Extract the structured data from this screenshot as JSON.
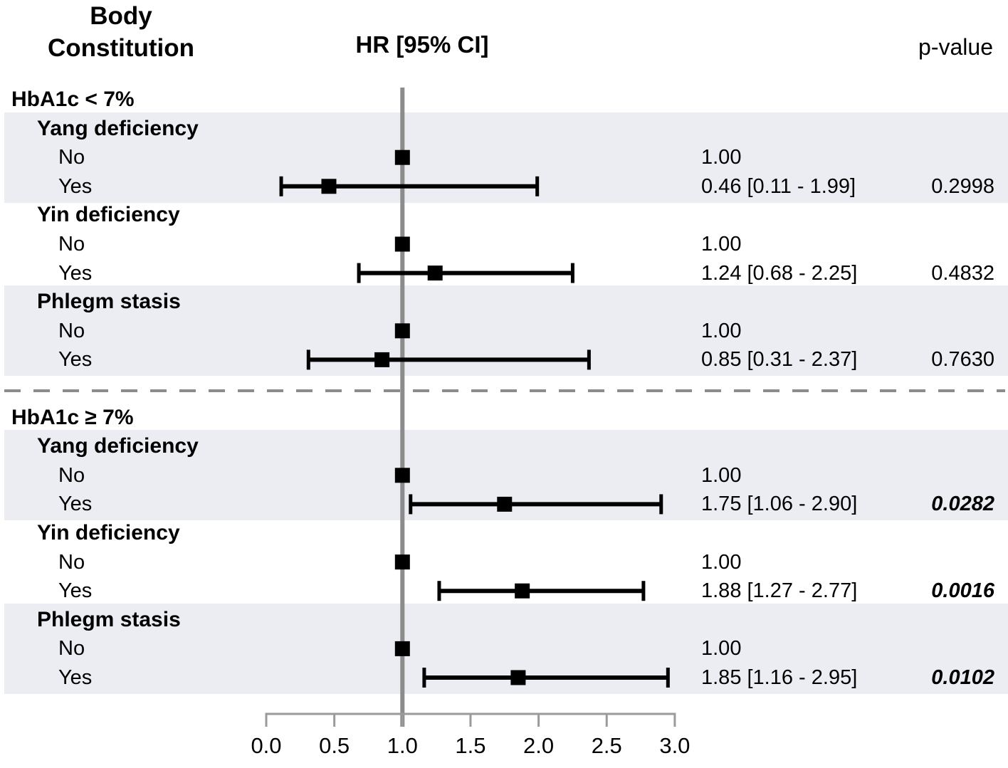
{
  "header": {
    "col1_line1": "Body",
    "col1_line2": "Constitution",
    "col2": "HR [95% CI]",
    "col3": "p-value"
  },
  "chart_data": {
    "type": "scatter",
    "subtype": "forest-plot",
    "title": "Body Constitution HR [95% CI] forest plot by HbA1c subgroup",
    "xlabel": "HR",
    "xlim": [
      0.0,
      3.0
    ],
    "x_ticks": [
      "0.0",
      "0.5",
      "1.0",
      "1.5",
      "2.0",
      "2.5",
      "3.0"
    ],
    "x_tick_values": [
      0.0,
      0.5,
      1.0,
      1.5,
      2.0,
      2.5,
      3.0
    ],
    "reference_line": 1.0,
    "grid": false,
    "legend": "none",
    "colors": {
      "stripe": "#ECEDF3",
      "marker": "#000000",
      "axis": "#9A9A9A",
      "reference_line": "#8C8C8C",
      "separator": "#8C8C8C",
      "text": "#000000"
    },
    "sections": [
      {
        "label": "HbA1c < 7%",
        "groups": [
          {
            "label": "Yang deficiency",
            "striped": true,
            "rows": [
              {
                "label": "No",
                "hr": 1.0,
                "text": "1.00",
                "p": "",
                "significant": false
              },
              {
                "label": "Yes",
                "hr": 0.46,
                "lo": 0.11,
                "hi": 1.99,
                "text": "0.46 [0.11 - 1.99]",
                "p": "0.2998",
                "significant": false
              }
            ]
          },
          {
            "label": "Yin deficiency",
            "striped": false,
            "rows": [
              {
                "label": "No",
                "hr": 1.0,
                "text": "1.00",
                "p": "",
                "significant": false
              },
              {
                "label": "Yes",
                "hr": 1.24,
                "lo": 0.68,
                "hi": 2.25,
                "text": "1.24 [0.68 - 2.25]",
                "p": "0.4832",
                "significant": false
              }
            ]
          },
          {
            "label": "Phlegm stasis",
            "striped": true,
            "rows": [
              {
                "label": "No",
                "hr": 1.0,
                "text": "1.00",
                "p": "",
                "significant": false
              },
              {
                "label": "Yes",
                "hr": 0.85,
                "lo": 0.31,
                "hi": 2.37,
                "text": "0.85 [0.31 - 2.37]",
                "p": "0.7630",
                "significant": false
              }
            ]
          }
        ]
      },
      {
        "label": "HbA1c ≥ 7%",
        "groups": [
          {
            "label": "Yang deficiency",
            "striped": true,
            "rows": [
              {
                "label": "No",
                "hr": 1.0,
                "text": "1.00",
                "p": "",
                "significant": false
              },
              {
                "label": "Yes",
                "hr": 1.75,
                "lo": 1.06,
                "hi": 2.9,
                "text": "1.75 [1.06 - 2.90]",
                "p": "0.0282",
                "significant": true
              }
            ]
          },
          {
            "label": "Yin deficiency",
            "striped": false,
            "rows": [
              {
                "label": "No",
                "hr": 1.0,
                "text": "1.00",
                "p": "",
                "significant": false
              },
              {
                "label": "Yes",
                "hr": 1.88,
                "lo": 1.27,
                "hi": 2.77,
                "text": "1.88 [1.27 - 2.77]",
                "p": "0.0016",
                "significant": true
              }
            ]
          },
          {
            "label": "Phlegm stasis",
            "striped": true,
            "rows": [
              {
                "label": "No",
                "hr": 1.0,
                "text": "1.00",
                "p": "",
                "significant": false
              },
              {
                "label": "Yes",
                "hr": 1.85,
                "lo": 1.16,
                "hi": 2.95,
                "text": "1.85 [1.16 - 2.95]",
                "p": "0.0102",
                "significant": true
              }
            ]
          }
        ]
      }
    ]
  }
}
